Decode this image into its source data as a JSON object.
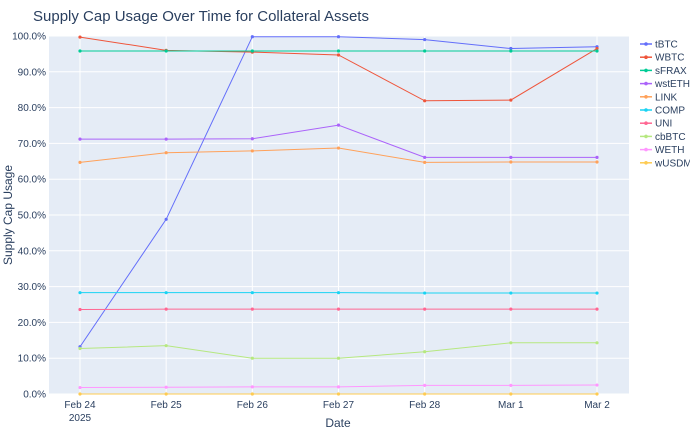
{
  "chart_data": {
    "type": "line",
    "title": "Supply Cap Usage Over Time for Collateral Assets",
    "xlabel": "Date",
    "ylabel": "Supply Cap Usage",
    "x": [
      "2025-02-24",
      "2025-02-25",
      "2025-02-26",
      "2025-02-27",
      "2025-02-28",
      "2025-03-01",
      "2025-03-02"
    ],
    "x_tick_labels": [
      "Feb 24",
      "Feb 25",
      "Feb 26",
      "Feb 27",
      "Feb 28",
      "Mar 1",
      "Mar 2"
    ],
    "x_tick_sublabel": "2025",
    "ylim": [
      0,
      100
    ],
    "y_ticks": [
      0,
      10,
      20,
      30,
      40,
      50,
      60,
      70,
      80,
      90,
      100
    ],
    "y_tick_labels": [
      "0.0%",
      "10.0%",
      "20.0%",
      "30.0%",
      "40.0%",
      "50.0%",
      "60.0%",
      "70.0%",
      "80.0%",
      "90.0%",
      "100.0%"
    ],
    "grid": true,
    "legend_position": "right",
    "plot_background": "#e5ecf6",
    "series": [
      {
        "name": "tBTC",
        "color": "#636efa",
        "values": [
          13.2,
          48.8,
          99.8,
          99.8,
          99.0,
          96.5,
          97.0
        ]
      },
      {
        "name": "WBTC",
        "color": "#ef553b",
        "values": [
          99.7,
          96.0,
          95.5,
          94.7,
          81.9,
          82.1,
          96.5
        ]
      },
      {
        "name": "sFRAX",
        "color": "#00cc96",
        "values": [
          95.8,
          95.8,
          95.8,
          95.8,
          95.8,
          95.8,
          95.8
        ]
      },
      {
        "name": "wstETH",
        "color": "#ab63fa",
        "values": [
          71.2,
          71.2,
          71.3,
          75.1,
          66.1,
          66.1,
          66.1
        ]
      },
      {
        "name": "LINK",
        "color": "#ffa15a",
        "values": [
          64.7,
          67.4,
          67.9,
          68.7,
          64.7,
          64.8,
          64.8
        ]
      },
      {
        "name": "COMP",
        "color": "#19d3f3",
        "values": [
          28.3,
          28.3,
          28.3,
          28.3,
          28.2,
          28.2,
          28.2
        ]
      },
      {
        "name": "UNI",
        "color": "#ff6692",
        "values": [
          23.6,
          23.7,
          23.7,
          23.7,
          23.7,
          23.7,
          23.7
        ]
      },
      {
        "name": "cbBTC",
        "color": "#b6e880",
        "values": [
          12.7,
          13.5,
          10.0,
          10.0,
          11.8,
          14.3,
          14.3
        ]
      },
      {
        "name": "WETH",
        "color": "#ff97ff",
        "values": [
          1.8,
          1.9,
          2.0,
          2.0,
          2.4,
          2.4,
          2.5
        ]
      },
      {
        "name": "wUSDM",
        "color": "#fecb52",
        "values": [
          0.0,
          0.0,
          0.0,
          0.0,
          0.0,
          0.0,
          0.0
        ]
      }
    ]
  }
}
